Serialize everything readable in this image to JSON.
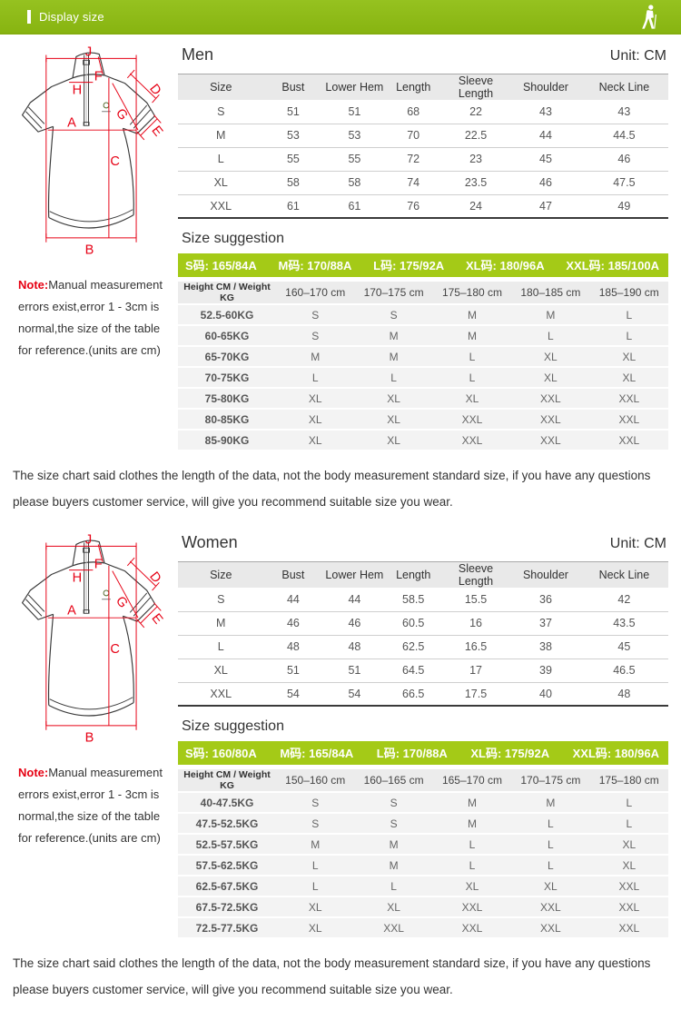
{
  "banner": {
    "title": "Display size",
    "icon": "hiker-icon"
  },
  "diagram": {
    "labels": {
      "J": "J",
      "H": "H",
      "F": "F",
      "A": "A",
      "D": "D",
      "G": "G",
      "E": "E",
      "C": "C",
      "B": "B"
    }
  },
  "note": {
    "label": "Note:",
    "text": "Manual measurement errors exist,error 1 - 3cm is normal,the size of the table for reference.(units are cm)"
  },
  "footer": "The size chart said clothes the length of the data, not the body measurement standard size, if you have any questions please buyers customer service, will give you recommend suitable size you wear.",
  "men": {
    "title": "Men",
    "unit": "Unit: CM",
    "table": {
      "columns": [
        "Size",
        "Bust",
        "Lower Hem",
        "Length",
        "Sleeve Length",
        "Shoulder",
        "Neck Line"
      ],
      "rows": [
        [
          "S",
          "51",
          "51",
          "68",
          "22",
          "43",
          "43"
        ],
        [
          "M",
          "53",
          "53",
          "70",
          "22.5",
          "44",
          "44.5"
        ],
        [
          "L",
          "55",
          "55",
          "72",
          "23",
          "45",
          "46"
        ],
        [
          "XL",
          "58",
          "58",
          "74",
          "23.5",
          "46",
          "47.5"
        ],
        [
          "XXL",
          "61",
          "61",
          "76",
          "24",
          "47",
          "49"
        ]
      ]
    },
    "suggestion": {
      "title": "Size suggestion",
      "codes": [
        "S码: 165/84A",
        "M码: 170/88A",
        "L码: 175/92A",
        "XL码: 180/96A",
        "XXL码: 185/100A"
      ],
      "columns": [
        "Height CM / Weight KG",
        "160–170 cm",
        "170–175 cm",
        "175–180 cm",
        "180–185 cm",
        "185–190 cm"
      ],
      "rows": [
        [
          "52.5-60KG",
          "S",
          "S",
          "M",
          "M",
          "L"
        ],
        [
          "60-65KG",
          "S",
          "M",
          "M",
          "L",
          "L"
        ],
        [
          "65-70KG",
          "M",
          "M",
          "L",
          "XL",
          "XL"
        ],
        [
          "70-75KG",
          "L",
          "L",
          "L",
          "XL",
          "XL"
        ],
        [
          "75-80KG",
          "XL",
          "XL",
          "XL",
          "XXL",
          "XXL"
        ],
        [
          "80-85KG",
          "XL",
          "XL",
          "XXL",
          "XXL",
          "XXL"
        ],
        [
          "85-90KG",
          "XL",
          "XL",
          "XXL",
          "XXL",
          "XXL"
        ]
      ]
    }
  },
  "women": {
    "title": "Women",
    "unit": "Unit: CM",
    "table": {
      "columns": [
        "Size",
        "Bust",
        "Lower Hem",
        "Length",
        "Sleeve Length",
        "Shoulder",
        "Neck Line"
      ],
      "rows": [
        [
          "S",
          "44",
          "44",
          "58.5",
          "15.5",
          "36",
          "42"
        ],
        [
          "M",
          "46",
          "46",
          "60.5",
          "16",
          "37",
          "43.5"
        ],
        [
          "L",
          "48",
          "48",
          "62.5",
          "16.5",
          "38",
          "45"
        ],
        [
          "XL",
          "51",
          "51",
          "64.5",
          "17",
          "39",
          "46.5"
        ],
        [
          "XXL",
          "54",
          "54",
          "66.5",
          "17.5",
          "40",
          "48"
        ]
      ]
    },
    "suggestion": {
      "title": "Size suggestion",
      "codes": [
        "S码: 160/80A",
        "M码: 165/84A",
        "L码: 170/88A",
        "XL码: 175/92A",
        "XXL码: 180/96A"
      ],
      "columns": [
        "Height CM / Weight KG",
        "150–160 cm",
        "160–165 cm",
        "165–170 cm",
        "170–175 cm",
        "175–180 cm"
      ],
      "rows": [
        [
          "40-47.5KG",
          "S",
          "S",
          "M",
          "M",
          "L"
        ],
        [
          "47.5-52.5KG",
          "S",
          "S",
          "M",
          "L",
          "L"
        ],
        [
          "52.5-57.5KG",
          "M",
          "M",
          "L",
          "L",
          "XL"
        ],
        [
          "57.5-62.5KG",
          "L",
          "M",
          "L",
          "L",
          "XL"
        ],
        [
          "62.5-67.5KG",
          "L",
          "L",
          "XL",
          "XL",
          "XXL"
        ],
        [
          "67.5-72.5KG",
          "XL",
          "XL",
          "XXL",
          "XXL",
          "XXL"
        ],
        [
          "72.5-77.5KG",
          "XL",
          "XXL",
          "XXL",
          "XXL",
          "XXL"
        ]
      ]
    }
  },
  "colors": {
    "banner_green": "#8fbe12",
    "code_bar_green": "#a4ca17",
    "note_red": "#e60012",
    "diagram_red": "#e60014",
    "header_gray": "#e9e9e9"
  }
}
